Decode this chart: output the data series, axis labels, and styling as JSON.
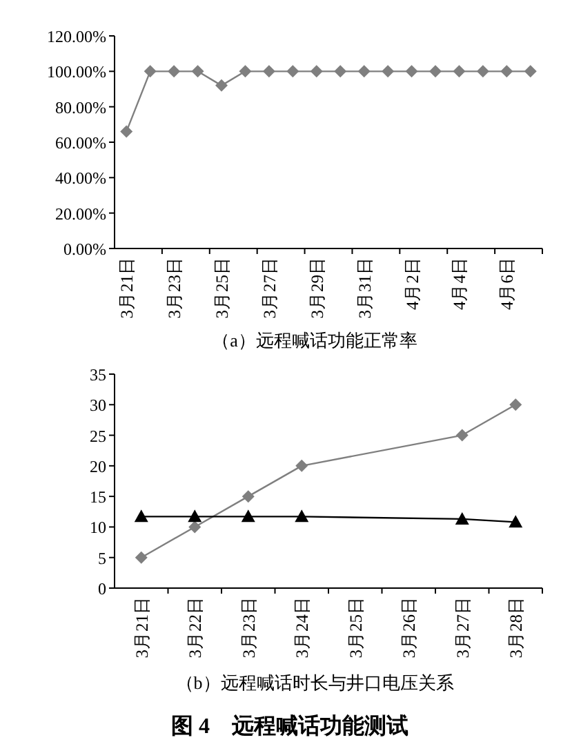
{
  "chart_data": [
    {
      "type": "line",
      "xlabel": "（a）远程喊话功能正常率",
      "categories": [
        "3月21日",
        null,
        "3月23日",
        null,
        "3月25日",
        null,
        "3月27日",
        null,
        "3月29日",
        null,
        "3月31日",
        null,
        "4月2日",
        null,
        "4月4日",
        null,
        "4月6日",
        null
      ],
      "series": [
        {
          "color": "#7f7f7f",
          "marker": "diamond",
          "values": [
            66,
            100,
            100,
            100,
            92,
            100,
            100,
            100,
            100,
            100,
            100,
            100,
            100,
            100,
            100,
            100,
            100,
            100
          ]
        }
      ],
      "ylim": [
        0,
        120
      ],
      "yticks": [
        {
          "value": 0,
          "label": "0.00%"
        },
        {
          "value": 20,
          "label": "20.00%"
        },
        {
          "value": 40,
          "label": "40.00%"
        },
        {
          "value": 60,
          "label": "60.00%"
        },
        {
          "value": 80,
          "label": "80.00%"
        },
        {
          "value": 100,
          "label": "100.00%"
        },
        {
          "value": 120,
          "label": "120.00%"
        }
      ],
      "grid": false
    },
    {
      "type": "line",
      "xlabel": "（b）远程喊话时长与井口电压关系",
      "categories": [
        "3月21日",
        "3月22日",
        "3月23日",
        "3月24日",
        "3月25日",
        "3月26日",
        "3月27日",
        "3月28日"
      ],
      "series": [
        {
          "color": "#7f7f7f",
          "marker": "diamond",
          "values": [
            5,
            10,
            15,
            20,
            null,
            null,
            25,
            30
          ]
        },
        {
          "color": "#000000",
          "marker": "triangle",
          "values": [
            11.7,
            11.7,
            11.7,
            11.7,
            null,
            null,
            11.3,
            10.8
          ]
        }
      ],
      "ylim": [
        0,
        35
      ],
      "yticks": [
        0,
        5,
        10,
        15,
        20,
        25,
        30,
        35
      ],
      "grid": false,
      "annotations": [
        "**图 4　远程喊话功能测试**"
      ]
    }
  ]
}
